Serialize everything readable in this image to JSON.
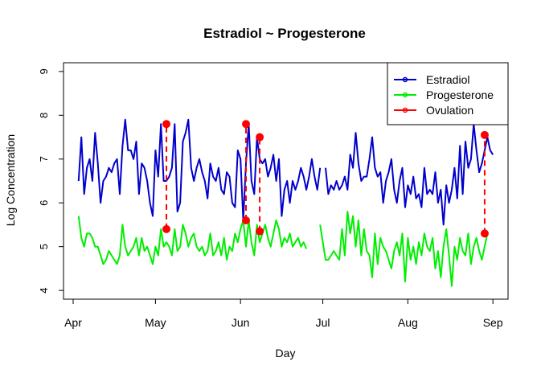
{
  "colors": {
    "estradiol": "#0000CD",
    "progesterone": "#00EE00",
    "ovulation": "#FF0000",
    "axis": "#000000"
  },
  "chart_data": {
    "type": "line",
    "title": "Estradiol ~ Progesterone",
    "xlabel": "Day",
    "ylabel": "Log Concentration",
    "ylim": [
      3.8,
      9.2
    ],
    "xlim": [
      "2014-04-01",
      "2014-09-03"
    ],
    "y_ticks": [
      4,
      5,
      6,
      7,
      8,
      9
    ],
    "x_ticks": [
      {
        "date": "2014-04-01",
        "label": "Apr"
      },
      {
        "date": "2014-05-01",
        "label": "May"
      },
      {
        "date": "2014-06-01",
        "label": "Jun"
      },
      {
        "date": "2014-07-01",
        "label": "Jul"
      },
      {
        "date": "2014-08-01",
        "label": "Aug"
      },
      {
        "date": "2014-09-01",
        "label": "Sep"
      }
    ],
    "grid": false,
    "legend_position": "top-right",
    "series": [
      {
        "name": "Estradiol",
        "color": "#0000CD",
        "style": "solid",
        "segments": [
          {
            "x": [
              "2014-04-03",
              "2014-04-04",
              "2014-04-05",
              "2014-04-06",
              "2014-04-07",
              "2014-04-08",
              "2014-04-09",
              "2014-04-10",
              "2014-04-11",
              "2014-04-12",
              "2014-04-13",
              "2014-04-14",
              "2014-04-15",
              "2014-04-16",
              "2014-04-17",
              "2014-04-18",
              "2014-04-19",
              "2014-04-20",
              "2014-04-21",
              "2014-04-22",
              "2014-04-23",
              "2014-04-24",
              "2014-04-25",
              "2014-04-26",
              "2014-04-27",
              "2014-04-28",
              "2014-04-29",
              "2014-04-30",
              "2014-05-01",
              "2014-05-02",
              "2014-05-03",
              "2014-05-04",
              "2014-05-05",
              "2014-05-06",
              "2014-05-07",
              "2014-05-08",
              "2014-05-09",
              "2014-05-10",
              "2014-05-11",
              "2014-05-12",
              "2014-05-13",
              "2014-05-14",
              "2014-05-15",
              "2014-05-16",
              "2014-05-17",
              "2014-05-18",
              "2014-05-19",
              "2014-05-20",
              "2014-05-21",
              "2014-05-22",
              "2014-05-23",
              "2014-05-24",
              "2014-05-25",
              "2014-05-26",
              "2014-05-27",
              "2014-05-28",
              "2014-05-29",
              "2014-05-30",
              "2014-05-31",
              "2014-06-01",
              "2014-06-02",
              "2014-06-03",
              "2014-06-04",
              "2014-06-05",
              "2014-06-06",
              "2014-06-07",
              "2014-06-08",
              "2014-06-09",
              "2014-06-10",
              "2014-06-11",
              "2014-06-12",
              "2014-06-13",
              "2014-06-14",
              "2014-06-15",
              "2014-06-16",
              "2014-06-17",
              "2014-06-18",
              "2014-06-19",
              "2014-06-20",
              "2014-06-21",
              "2014-06-22",
              "2014-06-23",
              "2014-06-24",
              "2014-06-25",
              "2014-06-26",
              "2014-06-27",
              "2014-06-28",
              "2014-06-29",
              "2014-06-30"
            ],
            "y": [
              6.5,
              7.5,
              6.2,
              6.8,
              7.0,
              6.5,
              7.6,
              6.9,
              6.0,
              6.5,
              6.6,
              6.8,
              6.7,
              6.9,
              7.0,
              6.2,
              7.3,
              7.9,
              7.2,
              7.2,
              7.0,
              7.4,
              6.2,
              6.9,
              6.8,
              6.5,
              6.0,
              5.7,
              7.2,
              6.6,
              7.8,
              6.5,
              6.5,
              6.6,
              6.8,
              7.8,
              5.8,
              6.0,
              7.4,
              7.6,
              7.9,
              6.8,
              6.5,
              6.8,
              7.0,
              6.7,
              6.5,
              6.1,
              6.9,
              6.6,
              6.5,
              6.8,
              6.3,
              6.2,
              6.7,
              6.6,
              6.0,
              5.9,
              7.2,
              7.0,
              5.6,
              6.9,
              7.8,
              6.5,
              6.2,
              7.5,
              7.0,
              6.9,
              7.0,
              6.6,
              6.8,
              7.1,
              6.5,
              7.0,
              5.7,
              6.3,
              6.5,
              6.0,
              6.5,
              6.3,
              6.5,
              6.8,
              6.6,
              6.3,
              6.6,
              7.0,
              6.6,
              6.3,
              6.8
            ]
          },
          {
            "x": [
              "2014-07-02",
              "2014-07-03",
              "2014-07-04",
              "2014-07-05",
              "2014-07-06",
              "2014-07-07",
              "2014-07-08",
              "2014-07-09",
              "2014-07-10",
              "2014-07-11",
              "2014-07-12",
              "2014-07-13",
              "2014-07-14",
              "2014-07-15",
              "2014-07-16",
              "2014-07-17",
              "2014-07-18",
              "2014-07-19",
              "2014-07-20",
              "2014-07-21",
              "2014-07-22",
              "2014-07-23",
              "2014-07-24",
              "2014-07-25",
              "2014-07-26",
              "2014-07-27",
              "2014-07-28",
              "2014-07-29",
              "2014-07-30",
              "2014-07-31",
              "2014-08-01",
              "2014-08-02",
              "2014-08-03",
              "2014-08-04",
              "2014-08-05",
              "2014-08-06",
              "2014-08-07",
              "2014-08-08",
              "2014-08-09",
              "2014-08-10",
              "2014-08-11",
              "2014-08-12",
              "2014-08-13",
              "2014-08-14",
              "2014-08-15",
              "2014-08-16",
              "2014-08-17",
              "2014-08-18",
              "2014-08-19",
              "2014-08-20",
              "2014-08-21",
              "2014-08-22",
              "2014-08-23",
              "2014-08-24",
              "2014-08-25",
              "2014-08-26",
              "2014-08-27",
              "2014-08-28",
              "2014-08-29",
              "2014-08-30",
              "2014-08-31",
              "2014-09-01"
            ],
            "y": [
              6.8,
              6.2,
              6.4,
              6.3,
              6.5,
              6.3,
              6.4,
              6.6,
              6.3,
              7.1,
              6.8,
              7.6,
              6.9,
              6.5,
              6.6,
              6.6,
              7.0,
              7.5,
              6.8,
              6.6,
              6.7,
              6.0,
              6.5,
              6.7,
              7.0,
              6.3,
              6.0,
              6.5,
              6.8,
              5.9,
              6.4,
              6.2,
              6.6,
              6.1,
              6.2,
              5.9,
              6.8,
              6.2,
              6.3,
              6.2,
              6.7,
              6.0,
              6.3,
              5.5,
              6.4,
              6.0,
              6.3,
              6.8,
              6.1,
              7.3,
              6.2,
              7.4,
              6.8,
              7.0,
              7.8,
              7.2,
              6.7,
              6.9,
              7.2,
              7.5,
              7.2,
              7.1
            ]
          }
        ]
      },
      {
        "name": "Progesterone",
        "color": "#00EE00",
        "style": "solid",
        "segments": [
          {
            "x": [
              "2014-04-03",
              "2014-04-04",
              "2014-04-05",
              "2014-04-06",
              "2014-04-07",
              "2014-04-08",
              "2014-04-09",
              "2014-04-10",
              "2014-04-11",
              "2014-04-12",
              "2014-04-13",
              "2014-04-14",
              "2014-04-15",
              "2014-04-16",
              "2014-04-17",
              "2014-04-18",
              "2014-04-19",
              "2014-04-20",
              "2014-04-21",
              "2014-04-22",
              "2014-04-23",
              "2014-04-24",
              "2014-04-25",
              "2014-04-26",
              "2014-04-27",
              "2014-04-28",
              "2014-04-29",
              "2014-04-30",
              "2014-05-01",
              "2014-05-02",
              "2014-05-03",
              "2014-05-04",
              "2014-05-05",
              "2014-05-06",
              "2014-05-07",
              "2014-05-08",
              "2014-05-09",
              "2014-05-10",
              "2014-05-11",
              "2014-05-12",
              "2014-05-13",
              "2014-05-14",
              "2014-05-15",
              "2014-05-16",
              "2014-05-17",
              "2014-05-18",
              "2014-05-19",
              "2014-05-20",
              "2014-05-21",
              "2014-05-22",
              "2014-05-23",
              "2014-05-24",
              "2014-05-25",
              "2014-05-26",
              "2014-05-27",
              "2014-05-28",
              "2014-05-29",
              "2014-05-30",
              "2014-05-31",
              "2014-06-01",
              "2014-06-02",
              "2014-06-03",
              "2014-06-04",
              "2014-06-05",
              "2014-06-06",
              "2014-06-07",
              "2014-06-08",
              "2014-06-09",
              "2014-06-10",
              "2014-06-11",
              "2014-06-12",
              "2014-06-13",
              "2014-06-14",
              "2014-06-15",
              "2014-06-16",
              "2014-06-17",
              "2014-06-18",
              "2014-06-19",
              "2014-06-20",
              "2014-06-21",
              "2014-06-22",
              "2014-06-23",
              "2014-06-24",
              "2014-06-25"
            ],
            "y": [
              5.7,
              5.2,
              5.0,
              5.3,
              5.3,
              5.2,
              5.0,
              5.0,
              4.8,
              4.6,
              4.7,
              4.9,
              4.8,
              4.7,
              4.6,
              4.8,
              5.5,
              5.0,
              4.8,
              4.9,
              5.0,
              5.2,
              4.8,
              5.2,
              4.9,
              5.0,
              4.8,
              4.6,
              5.0,
              4.8,
              5.4,
              5.0,
              5.1,
              5.0,
              4.8,
              5.4,
              4.9,
              5.0,
              5.5,
              5.3,
              5.0,
              5.2,
              5.3,
              5.0,
              4.9,
              5.0,
              4.8,
              4.9,
              5.3,
              4.8,
              4.9,
              5.1,
              4.8,
              5.2,
              4.7,
              5.0,
              4.9,
              5.3,
              5.1,
              5.4,
              5.6,
              5.0,
              5.6,
              5.1,
              4.8,
              5.5,
              5.1,
              5.3,
              5.5,
              5.2,
              5.0,
              5.3,
              5.6,
              5.4,
              5.0,
              5.2,
              5.1,
              5.3,
              5.0,
              5.1,
              5.2,
              5.0,
              5.1,
              4.95
            ]
          },
          {
            "x": [
              "2014-06-30",
              "2014-07-01",
              "2014-07-02",
              "2014-07-03",
              "2014-07-04",
              "2014-07-05",
              "2014-07-06",
              "2014-07-07",
              "2014-07-08",
              "2014-07-09",
              "2014-07-10",
              "2014-07-11",
              "2014-07-12",
              "2014-07-13",
              "2014-07-14",
              "2014-07-15",
              "2014-07-16",
              "2014-07-17",
              "2014-07-18",
              "2014-07-19",
              "2014-07-20",
              "2014-07-21",
              "2014-07-22",
              "2014-07-23",
              "2014-07-24",
              "2014-07-25",
              "2014-07-26",
              "2014-07-27",
              "2014-07-28",
              "2014-07-29",
              "2014-07-30",
              "2014-07-31",
              "2014-08-01",
              "2014-08-02",
              "2014-08-03",
              "2014-08-04",
              "2014-08-05",
              "2014-08-06",
              "2014-08-07",
              "2014-08-08",
              "2014-08-09",
              "2014-08-10",
              "2014-08-11",
              "2014-08-12",
              "2014-08-13",
              "2014-08-14",
              "2014-08-15",
              "2014-08-16",
              "2014-08-17",
              "2014-08-18",
              "2014-08-19",
              "2014-08-20",
              "2014-08-21",
              "2014-08-22",
              "2014-08-23",
              "2014-08-24",
              "2014-08-25",
              "2014-08-26",
              "2014-08-27",
              "2014-08-28",
              "2014-08-29",
              "2014-08-30"
            ],
            "y": [
              5.5,
              5.1,
              4.7,
              4.7,
              4.8,
              4.9,
              4.8,
              4.7,
              5.4,
              4.8,
              5.8,
              5.3,
              5.7,
              5.0,
              5.6,
              4.8,
              5.4,
              4.9,
              4.8,
              4.3,
              5.3,
              4.6,
              5.2,
              5.0,
              4.9,
              4.7,
              4.5,
              4.9,
              5.1,
              4.8,
              5.3,
              4.2,
              5.2,
              4.7,
              5.0,
              4.6,
              5.1,
              4.8,
              5.3,
              5.0,
              4.9,
              5.2,
              4.5,
              4.9,
              4.3,
              5.0,
              5.4,
              4.8,
              4.1,
              5.0,
              4.7,
              5.2,
              4.9,
              4.8,
              5.3,
              4.6,
              5.0,
              5.2,
              4.9,
              4.7,
              5.0,
              5.3
            ]
          }
        ]
      },
      {
        "name": "Ovulation",
        "color": "#FF0000",
        "style": "dashed",
        "pairs": [
          {
            "x": "2014-05-05",
            "y": [
              5.4,
              7.8
            ]
          },
          {
            "x": "2014-06-03",
            "y": [
              5.6,
              7.8
            ]
          },
          {
            "x": "2014-06-08",
            "y": [
              5.35,
              7.5
            ]
          },
          {
            "x": "2014-08-29",
            "y": [
              5.3,
              7.55
            ]
          }
        ]
      }
    ]
  }
}
